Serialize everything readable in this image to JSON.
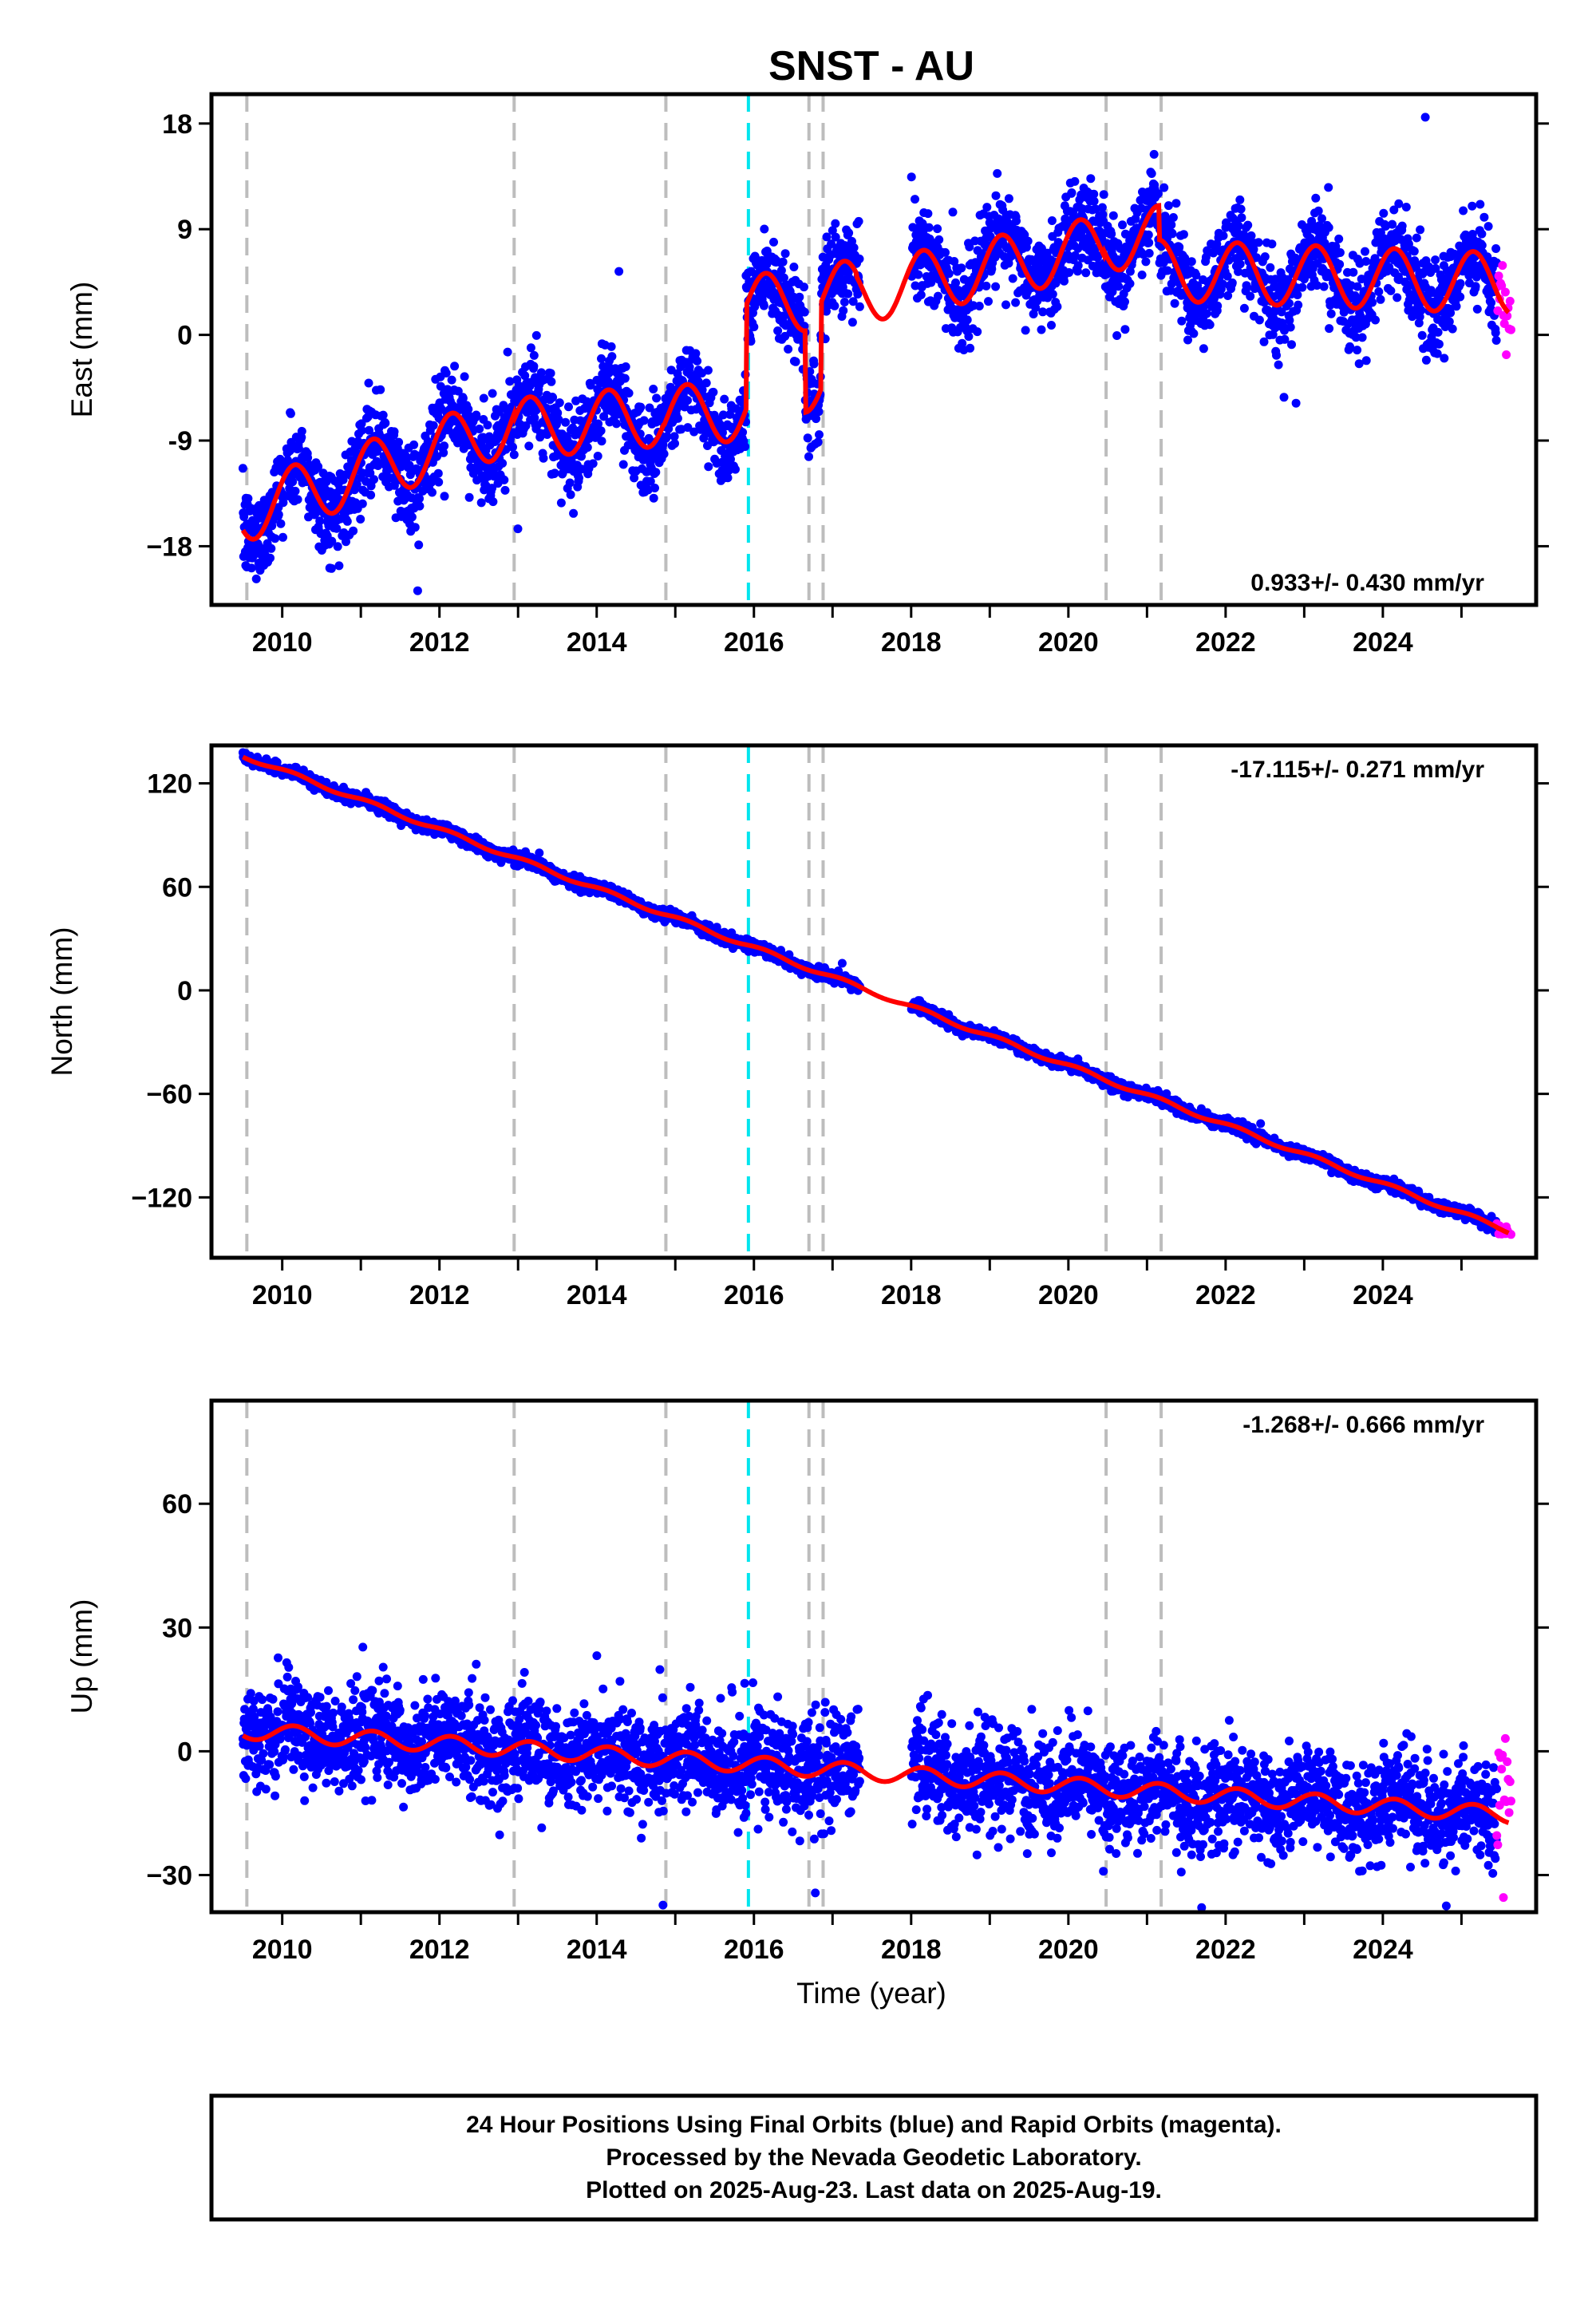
{
  "title": "SNST - AU",
  "chart_data": [
    {
      "type": "scatter",
      "name": "east-panel",
      "ylabel": "East (mm)",
      "xlim": [
        2009.1,
        2025.95
      ],
      "ylim": [
        -23,
        20.5
      ],
      "yticks": [
        18,
        9,
        0,
        -9,
        -18
      ],
      "ytick_labels": [
        "18",
        "9",
        "0",
        "-9",
        "−18"
      ],
      "xticks": [
        2010,
        2012,
        2014,
        2016,
        2018,
        2020,
        2022,
        2024
      ],
      "rate_label": "0.933+/- 0.430 mm/yr",
      "rate_position": "bottom-right",
      "model": {
        "slope_mm_per_yr": 0.933,
        "knots_x": [
          2009.55,
          2012.95,
          2014.85,
          2015.9,
          2016.65,
          2016.85,
          2020.45,
          2021.15
        ],
        "knots_y": [
          -15.0,
          -8.0,
          -7.0,
          2.5,
          -4.0,
          3.5,
          8.0,
          6.0
        ]
      },
      "reference": {
        "annual_amplitude_mm": 2.6,
        "noise_mm": 1.9
      }
    },
    {
      "type": "scatter",
      "name": "north-panel",
      "ylabel": "North (mm)",
      "xlim": [
        2009.1,
        2025.95
      ],
      "ylim": [
        -155,
        142
      ],
      "yticks": [
        120,
        60,
        0,
        -60,
        -120
      ],
      "ytick_labels": [
        "120",
        "60",
        "0",
        "−60",
        "−120"
      ],
      "xticks": [
        2010,
        2012,
        2014,
        2016,
        2018,
        2020,
        2022,
        2024
      ],
      "rate_label": "-17.115+/- 0.271 mm/yr",
      "rate_position": "top-right",
      "model": {
        "slope_mm_per_yr": -17.115,
        "start_value_mm": 136
      },
      "reference": {
        "annual_amplitude_mm": 1.2,
        "noise_mm": 1.6
      }
    },
    {
      "type": "scatter",
      "name": "up-panel",
      "ylabel": "Up (mm)",
      "xlabel": "Time (year)",
      "xlim": [
        2009.1,
        2025.95
      ],
      "ylim": [
        -39,
        85
      ],
      "yticks": [
        60,
        30,
        0,
        -30
      ],
      "ytick_labels": [
        "60",
        "30",
        "0",
        "−30"
      ],
      "xticks": [
        2010,
        2012,
        2014,
        2016,
        2018,
        2020,
        2022,
        2024
      ],
      "rate_label": "-1.268+/- 0.666 mm/yr",
      "rate_position": "top-right",
      "model": {
        "slope_mm_per_yr": -1.268,
        "start_value_mm": 5
      },
      "reference": {
        "annual_amplitude_mm": 2.0,
        "noise_mm": 6.0
      }
    }
  ],
  "series": [
    {
      "name": "Final Orbits",
      "color": "#0000ff",
      "x_range": [
        2009.5,
        2025.45
      ],
      "gap": [
        2017.35,
        2018.0
      ]
    },
    {
      "name": "Rapid Orbits",
      "color": "#ff00ff",
      "x_range": [
        2025.45,
        2025.63
      ]
    },
    {
      "name": "model",
      "color": "#ff0000"
    }
  ],
  "equipment_changes": [
    2009.55,
    2012.95,
    2014.88,
    2016.7,
    2016.88,
    2020.48,
    2021.18
  ],
  "earthquake_events": [
    2015.93
  ],
  "colors": {
    "final": "#0000ff",
    "rapid": "#ff00ff",
    "model": "#ff0000",
    "equipment": "#bdbdbd",
    "earthquake": "#00e5ee"
  },
  "footer": {
    "line1": "24 Hour Positions Using Final Orbits (blue) and Rapid Orbits (magenta).",
    "line2": "Processed by the Nevada Geodetic Laboratory.",
    "line3": "Plotted on 2025-Aug-23. Last data on 2025-Aug-19."
  }
}
